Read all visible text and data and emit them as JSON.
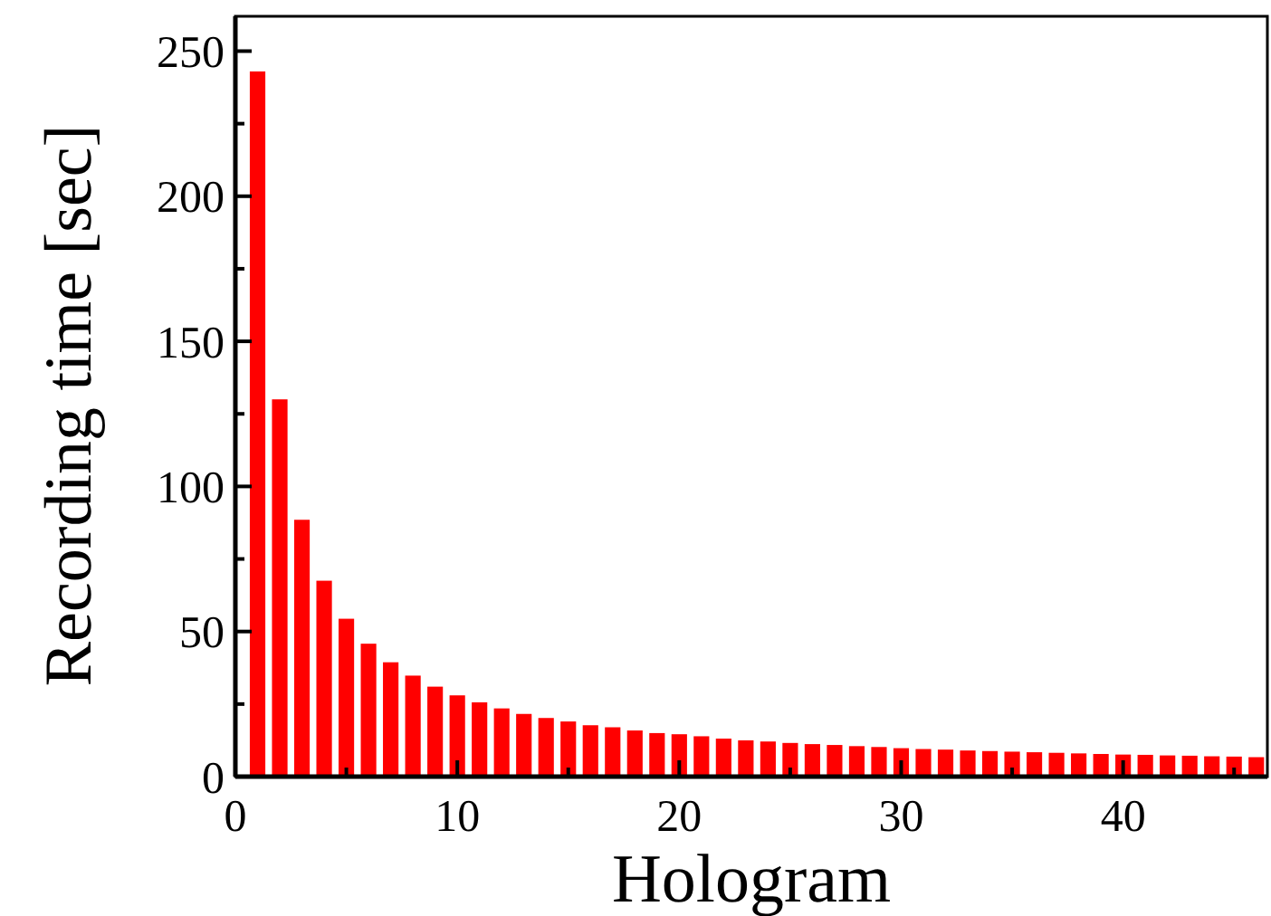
{
  "chart_data": {
    "type": "bar",
    "xlabel": "Hologram",
    "ylabel": "Recording time [sec]",
    "color": "#ff0000",
    "x": [
      1,
      2,
      3,
      4,
      5,
      6,
      7,
      8,
      9,
      10,
      11,
      12,
      13,
      14,
      15,
      16,
      17,
      18,
      19,
      20,
      21,
      22,
      23,
      24,
      25,
      26,
      27,
      28,
      29,
      30,
      31,
      32,
      33,
      34,
      35,
      36,
      37,
      38,
      39,
      40,
      41,
      42,
      43,
      44,
      45,
      46
    ],
    "values": [
      243,
      130,
      88.5,
      67.5,
      54.4,
      45.8,
      39.4,
      34.8,
      31,
      28,
      25.6,
      23.5,
      21.6,
      20.2,
      19,
      17.7,
      17,
      15.9,
      15,
      14.6,
      13.9,
      13.1,
      12.5,
      12.1,
      11.6,
      11.2,
      10.9,
      10.5,
      10.2,
      9.8,
      9.5,
      9.3,
      9.0,
      8.8,
      8.6,
      8.4,
      8.2,
      8.0,
      7.8,
      7.6,
      7.5,
      7.3,
      7.2,
      7.0,
      6.9,
      6.7
    ],
    "xlim": [
      0,
      46.5
    ],
    "xticks": [
      0,
      {
        "value": 5,
        "label": null
      },
      10,
      {
        "value": 15,
        "label": null
      },
      20,
      {
        "value": 25,
        "label": null
      },
      30,
      {
        "value": 35,
        "label": null
      },
      40,
      {
        "value": 45,
        "label": null
      }
    ],
    "ylim": [
      0,
      262
    ],
    "yticks": [
      0,
      {
        "value": 25,
        "label": null
      },
      50,
      {
        "value": 75,
        "label": null
      },
      100,
      {
        "value": 125,
        "label": null
      },
      150,
      {
        "value": 175,
        "label": null
      },
      200,
      {
        "value": 225,
        "label": null
      },
      250
    ],
    "grid": false
  }
}
